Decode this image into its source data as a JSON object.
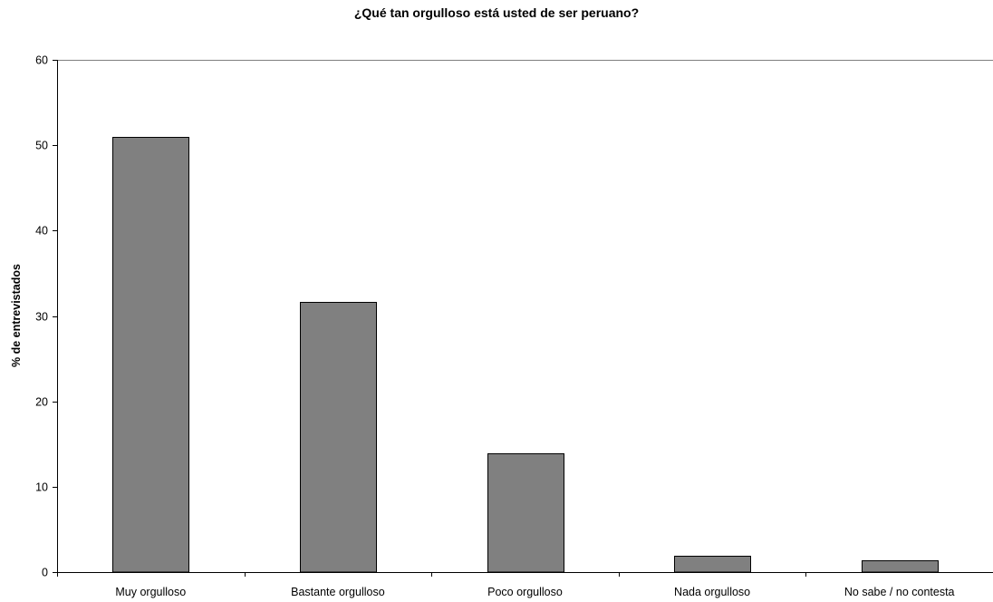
{
  "chart_data": {
    "type": "bar",
    "title": "¿Qué tan orgulloso está usted de ser peruano?",
    "xlabel": "",
    "ylabel": "% de entrevistados",
    "categories": [
      "Muy orgulloso",
      "Bastante orgulloso",
      "Poco orgulloso",
      "Nada orgulloso",
      "No sabe / no contesta"
    ],
    "values": [
      51.0,
      31.6,
      13.9,
      1.9,
      1.4
    ],
    "ylim": [
      0,
      60
    ],
    "yticks": [
      0,
      10,
      20,
      30,
      40,
      50,
      60
    ],
    "grid": false,
    "legend": "none",
    "bar_color": "#808080",
    "bar_edge_color": "#000000"
  }
}
